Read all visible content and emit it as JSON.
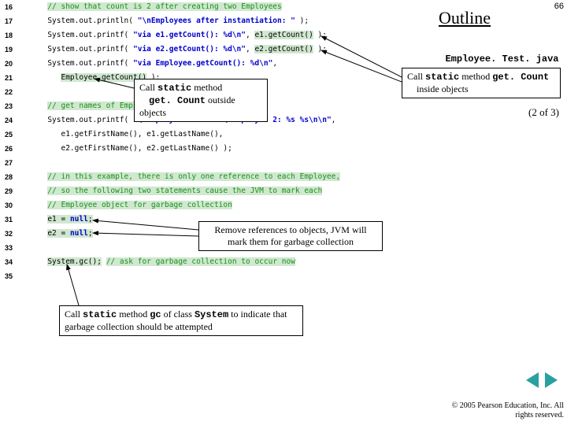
{
  "page_number": "66",
  "outline_title": "Outline",
  "filename": "Employee. Test. java",
  "page_indicator": "(2 of  3)",
  "copyright": "© 2005 Pearson Education, Inc.  All rights reserved.",
  "callouts": {
    "c1": {
      "line1_pre": "Call ",
      "line1_mono": "static",
      "line1_post": " method",
      "line2_mono": "get. Count",
      "line2_post": " outside objects"
    },
    "c2": {
      "line1_pre": "Call ",
      "line1_mono1": "static",
      "line1_mid": " method ",
      "line1_mono2": "get. Count",
      "line2": "inside objects"
    },
    "c3": {
      "text": "Remove references to objects, JVM will mark them for garbage collection"
    },
    "c4": {
      "pre": "Call ",
      "mono1": "static",
      "mid1": " method ",
      "mono2": "gc",
      "mid2": " of class ",
      "mono3": "System",
      "post": " to indicate that garbage collection should be attempted"
    }
  },
  "code": {
    "lines": [
      {
        "n": "16",
        "indent": "      ",
        "spans": [
          {
            "cls": "comment hl",
            "t": "// show that count is 2 after creating two Employees"
          }
        ]
      },
      {
        "n": "17",
        "indent": "      ",
        "spans": [
          {
            "cls": "normal",
            "t": "System.out.println( "
          },
          {
            "cls": "string",
            "t": "\"\\nEmployees after instantiation: \""
          },
          {
            "cls": "normal",
            "t": " );"
          }
        ]
      },
      {
        "n": "18",
        "indent": "      ",
        "spans": [
          {
            "cls": "normal",
            "t": "System.out.printf( "
          },
          {
            "cls": "string",
            "t": "\"via e1.getCount(): %d\\n\""
          },
          {
            "cls": "normal",
            "t": ", "
          },
          {
            "cls": "normal hl",
            "t": "e1.getCount()"
          },
          {
            "cls": "normal",
            "t": " );"
          }
        ]
      },
      {
        "n": "19",
        "indent": "      ",
        "spans": [
          {
            "cls": "normal",
            "t": "System.out.printf( "
          },
          {
            "cls": "string",
            "t": "\"via e2.getCount(): %d\\n\""
          },
          {
            "cls": "normal",
            "t": ", "
          },
          {
            "cls": "normal hl",
            "t": "e2.getCount()"
          },
          {
            "cls": "normal",
            "t": " );"
          }
        ]
      },
      {
        "n": "20",
        "indent": "      ",
        "spans": [
          {
            "cls": "normal",
            "t": "System.out.printf( "
          },
          {
            "cls": "string",
            "t": "\"via Employee.getCount(): %d\\n\""
          },
          {
            "cls": "normal",
            "t": ","
          }
        ]
      },
      {
        "n": "21",
        "indent": "         ",
        "spans": [
          {
            "cls": "normal hl",
            "t": "Employee.getCount()"
          },
          {
            "cls": "normal",
            "t": " );"
          }
        ]
      },
      {
        "n": "22",
        "indent": "",
        "spans": []
      },
      {
        "n": "23",
        "indent": "      ",
        "spans": [
          {
            "cls": "comment hl",
            "t": "// get names of Employees"
          }
        ]
      },
      {
        "n": "24",
        "indent": "      ",
        "spans": [
          {
            "cls": "normal",
            "t": "System.out.printf( "
          },
          {
            "cls": "string",
            "t": "\"\\nEmployee 1: %s %s\\nEmployee 2: %s %s\\n\\n\""
          },
          {
            "cls": "normal",
            "t": ","
          }
        ]
      },
      {
        "n": "25",
        "indent": "         ",
        "spans": [
          {
            "cls": "normal",
            "t": "e1.getFirstName(), e1.getLastName(),"
          }
        ]
      },
      {
        "n": "26",
        "indent": "         ",
        "spans": [
          {
            "cls": "normal",
            "t": "e2.getFirstName(), e2.getLastName() );"
          }
        ]
      },
      {
        "n": "27",
        "indent": "",
        "spans": []
      },
      {
        "n": "28",
        "indent": "      ",
        "spans": [
          {
            "cls": "comment hl",
            "t": "// in this example, there is only one reference to each Employee,"
          }
        ]
      },
      {
        "n": "29",
        "indent": "      ",
        "spans": [
          {
            "cls": "comment hl",
            "t": "// so the following two statements cause the JVM to mark each"
          }
        ]
      },
      {
        "n": "30",
        "indent": "      ",
        "spans": [
          {
            "cls": "comment hl",
            "t": "// Employee object for garbage collection"
          }
        ]
      },
      {
        "n": "31",
        "indent": "      ",
        "spans": [
          {
            "cls": "normal hl",
            "t": "e1 = "
          },
          {
            "cls": "keyword hl",
            "t": "null"
          },
          {
            "cls": "normal hl",
            "t": ";"
          }
        ]
      },
      {
        "n": "32",
        "indent": "      ",
        "spans": [
          {
            "cls": "normal hl",
            "t": "e2 = "
          },
          {
            "cls": "keyword hl",
            "t": "null"
          },
          {
            "cls": "normal hl",
            "t": ";"
          }
        ]
      },
      {
        "n": "33",
        "indent": "",
        "spans": []
      },
      {
        "n": "34",
        "indent": "      ",
        "spans": [
          {
            "cls": "normal hl",
            "t": "System.gc();"
          },
          {
            "cls": "normal",
            "t": " "
          },
          {
            "cls": "comment hl",
            "t": "// ask for garbage collection to occur now"
          }
        ]
      },
      {
        "n": "35",
        "indent": "",
        "spans": []
      }
    ]
  },
  "colors": {
    "comment": "#1a8f1a",
    "keyword": "#0000cc",
    "highlight_bg": "#d0e8d0",
    "nav_btn": "#2aa0a0"
  }
}
